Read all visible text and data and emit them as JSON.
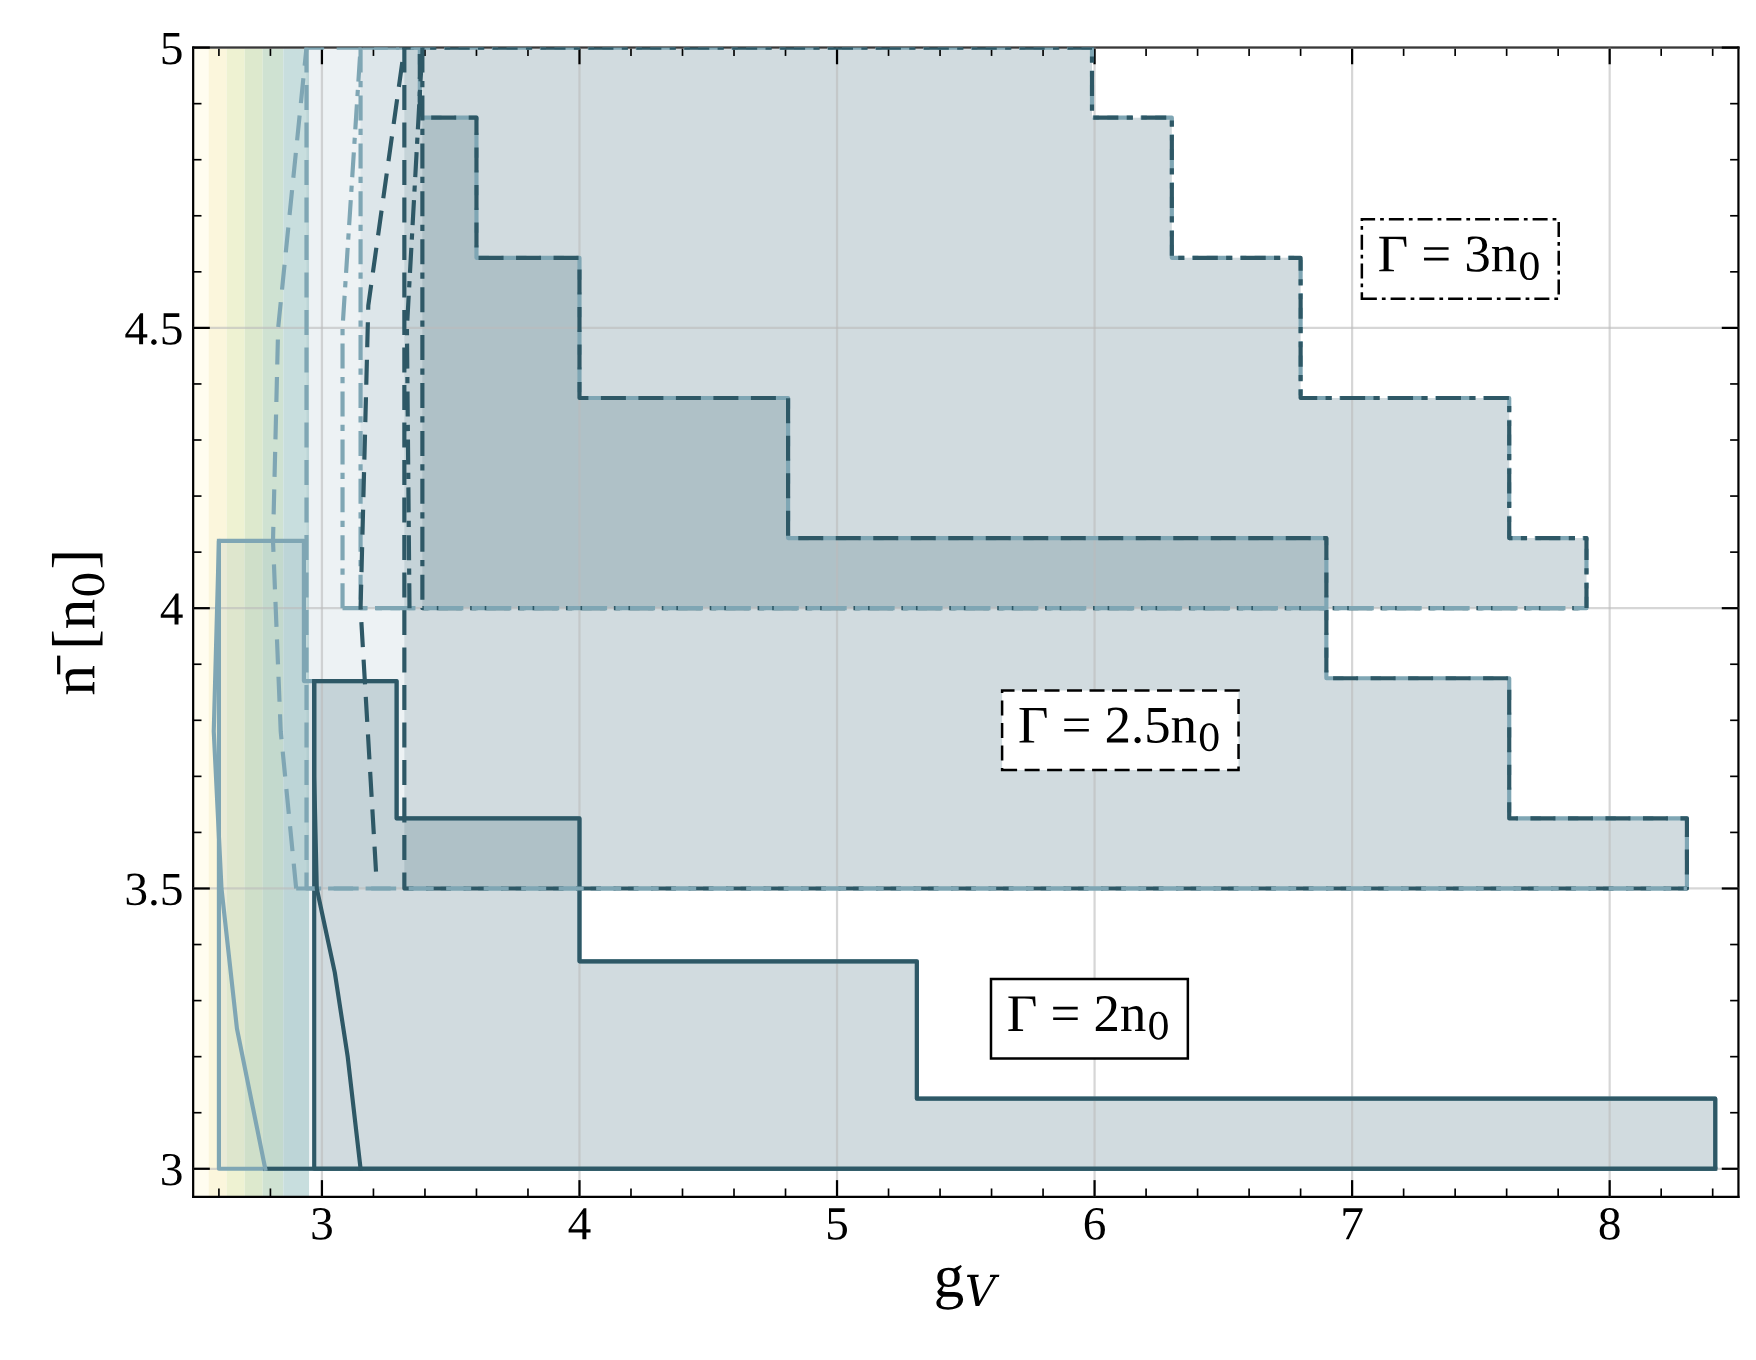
{
  "chart_data": {
    "type": "area",
    "xlabel": "g$_{V}$",
    "ylabel": "n̄ [n$_{0}$]",
    "xlim": [
      2.5,
      8.5
    ],
    "ylim": [
      2.95,
      5
    ],
    "xticks": [
      3,
      4,
      5,
      6,
      7,
      8
    ],
    "yticks": [
      3,
      3.5,
      4,
      4.5,
      5
    ],
    "grid": true,
    "legend": false,
    "bands": [
      {
        "axis": "x",
        "from": 2.5,
        "to": 2.56,
        "color": "#fffdf0"
      },
      {
        "axis": "x",
        "from": 2.56,
        "to": 2.63,
        "color": "#fbf6dc"
      },
      {
        "axis": "x",
        "from": 2.63,
        "to": 2.7,
        "color": "#eef2d2"
      },
      {
        "axis": "x",
        "from": 2.7,
        "to": 2.77,
        "color": "#dde9cd"
      },
      {
        "axis": "x",
        "from": 2.77,
        "to": 2.85,
        "color": "#cfe2d2"
      },
      {
        "axis": "x",
        "from": 2.85,
        "to": 2.95,
        "color": "#c8dede"
      }
    ],
    "series": [
      {
        "color": "#7fa6b4",
        "line_style": "solid",
        "x": [
          2.6,
          2.93,
          3.29,
          4.0,
          5.31,
          8.41
        ],
        "values": [
          4.12,
          3.87,
          3.625,
          3.37,
          3.125,
          3.125
        ]
      },
      {
        "color": "#2e5866",
        "line_style": "solid",
        "x": [
          2.97,
          3.29,
          4.0,
          5.31,
          8.41
        ],
        "values": [
          3.87,
          3.625,
          3.37,
          3.125,
          3.125
        ]
      },
      {
        "type": "line",
        "color": "#2e5866",
        "line_style": "solid",
        "x": [
          2.78,
          8.41
        ],
        "values": [
          3,
          3
        ]
      },
      {
        "color": "#7fa6b4",
        "line_style": "dashed",
        "x": [
          2.94,
          3.38,
          3.6,
          4.0,
          4.81,
          6.9,
          7.61,
          8.3
        ],
        "values": [
          5,
          4.875,
          4.625,
          4.375,
          4.125,
          3.875,
          3.625,
          3.625
        ]
      },
      {
        "color": "#2e5866",
        "line_style": "dashed",
        "x": [
          3.32,
          3.38,
          3.6,
          4.0,
          4.81,
          6.9,
          7.61,
          8.3
        ],
        "values": [
          5,
          4.875,
          4.625,
          4.375,
          4.125,
          3.875,
          3.625,
          3.625
        ]
      },
      {
        "type": "line",
        "color": "#7fa6b4",
        "line_style": "dashed",
        "x": [
          2.9,
          8.3
        ],
        "values": [
          3.5,
          3.5
        ]
      },
      {
        "color": "#7fa6b4",
        "line_style": "dashdot",
        "x": [
          3.15,
          5.99,
          6.3,
          6.8,
          7.61,
          7.91
        ],
        "values": [
          5,
          4.875,
          4.625,
          4.375,
          4.125,
          4.125
        ]
      },
      {
        "color": "#2e5866",
        "line_style": "dashdot",
        "x": [
          3.39,
          5.99,
          6.3,
          6.8,
          7.61,
          7.91
        ],
        "values": [
          5,
          4.875,
          4.625,
          4.375,
          4.125,
          4.125
        ]
      },
      {
        "type": "line",
        "color": "#7fa6b4",
        "line_style": "dashdot",
        "x": [
          3.08,
          7.91
        ],
        "values": [
          4,
          4
        ]
      },
      {
        "type": "line",
        "color": "#7fa6b4",
        "line_style": "solid",
        "x": [
          2.78,
          2.67,
          2.61,
          2.58,
          2.6
        ],
        "values": [
          3,
          3.25,
          3.5,
          3.78,
          4.12
        ]
      },
      {
        "type": "line",
        "color": "#2e5866",
        "line_style": "solid",
        "x": [
          3.15,
          3.1,
          3.05,
          2.98,
          2.97,
          2.97
        ],
        "values": [
          3,
          3.2,
          3.35,
          3.5,
          3.7,
          3.87
        ]
      },
      {
        "type": "line",
        "color": "#7fa6b4",
        "line_style": "dashed",
        "x": [
          2.9,
          2.84,
          2.81,
          2.83,
          2.94
        ],
        "values": [
          3.5,
          3.78,
          4.12,
          4.5,
          5
        ]
      },
      {
        "type": "line",
        "color": "#2e5866",
        "line_style": "dashed",
        "x": [
          3.21,
          3.15,
          3.18,
          3.32
        ],
        "values": [
          3.53,
          4.0,
          4.54,
          5
        ]
      },
      {
        "type": "line",
        "color": "#7fa6b4",
        "line_style": "dashdot",
        "x": [
          3.08,
          3.08,
          3.15
        ],
        "values": [
          4,
          4.5,
          5
        ]
      },
      {
        "type": "line",
        "color": "#2e5866",
        "line_style": "dashdot",
        "x": [
          3.34,
          3.33,
          3.39
        ],
        "values": [
          4,
          4.5,
          5
        ]
      }
    ],
    "annotations": [
      "Γ = 2n$_{0}$",
      "Γ = 2.5n$_{0}$",
      "Γ = 3n$_{0}$"
    ]
  }
}
